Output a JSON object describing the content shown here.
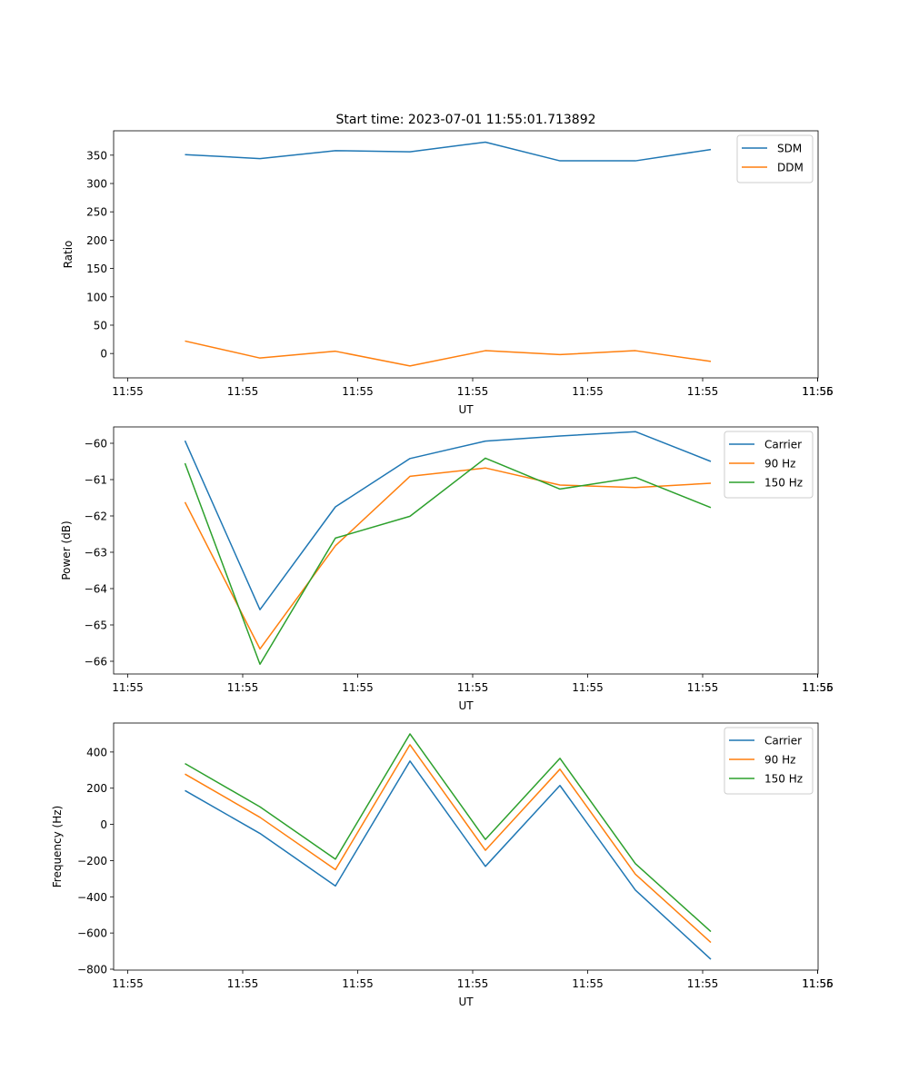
{
  "chart_data": [
    {
      "type": "line",
      "title": "Start time: 2023-07-01 11:55:01.713892",
      "xlabel": "UT",
      "ylabel": "Ratio",
      "x_tick_labels": [
        "11:55",
        "11:55",
        "11:55",
        "11:55",
        "11:55",
        "11:55",
        "11:55"
      ],
      "y_ticks": [
        0,
        50,
        100,
        150,
        200,
        250,
        300,
        350
      ],
      "ylim": [
        -43,
        393
      ],
      "legend_position": "top-right",
      "grid": false,
      "series": [
        {
          "name": "SDM",
          "color": "#1f77b4",
          "values": [
            351,
            344,
            358,
            356,
            373,
            340,
            340,
            360
          ]
        },
        {
          "name": "DDM",
          "color": "#ff7f0e",
          "values": [
            22,
            -8,
            4,
            -22,
            5,
            -2,
            5,
            -14
          ]
        }
      ]
    },
    {
      "type": "line",
      "title": "",
      "xlabel": "UT",
      "ylabel": "Power (dB)",
      "x_tick_labels": [
        "11:55",
        "11:55",
        "11:55",
        "11:55",
        "11:55",
        "11:55",
        "11:55"
      ],
      "y_ticks": [
        -66,
        -65,
        -64,
        -63,
        -62,
        -61,
        -60
      ],
      "ylim": [
        -66.35,
        -59.55
      ],
      "legend_position": "top-right",
      "grid": false,
      "series": [
        {
          "name": "Carrier",
          "color": "#1f77b4",
          "values": [
            -59.93,
            -64.58,
            -61.75,
            -60.42,
            -59.94,
            -59.8,
            -59.68,
            -60.5
          ]
        },
        {
          "name": "90 Hz",
          "color": "#ff7f0e",
          "values": [
            -61.62,
            -65.66,
            -62.82,
            -60.91,
            -60.68,
            -61.15,
            -61.22,
            -61.1
          ]
        },
        {
          "name": "150 Hz",
          "color": "#2ca02c",
          "values": [
            -60.55,
            -66.08,
            -62.61,
            -62.01,
            -60.41,
            -61.26,
            -60.94,
            -61.77
          ]
        }
      ]
    },
    {
      "type": "line",
      "title": "",
      "xlabel": "UT",
      "ylabel": "Frequency (Hz)",
      "x_tick_labels": [
        "11:55",
        "11:55",
        "11:55",
        "11:55",
        "11:55",
        "11:55",
        "11:55"
      ],
      "y_ticks": [
        -800,
        -600,
        -400,
        -200,
        0,
        200,
        400
      ],
      "ylim": [
        -805,
        560
      ],
      "legend_position": "top-right",
      "grid": false,
      "series": [
        {
          "name": "Carrier",
          "color": "#1f77b4",
          "values": [
            187,
            -50,
            -340,
            350,
            -232,
            215,
            -363,
            -745
          ]
        },
        {
          "name": "90 Hz",
          "color": "#ff7f0e",
          "values": [
            278,
            39,
            -250,
            440,
            -143,
            305,
            -275,
            -652
          ]
        },
        {
          "name": "150 Hz",
          "color": "#2ca02c",
          "values": [
            336,
            97,
            -192,
            500,
            -83,
            365,
            -217,
            -592
          ]
        }
      ]
    }
  ]
}
